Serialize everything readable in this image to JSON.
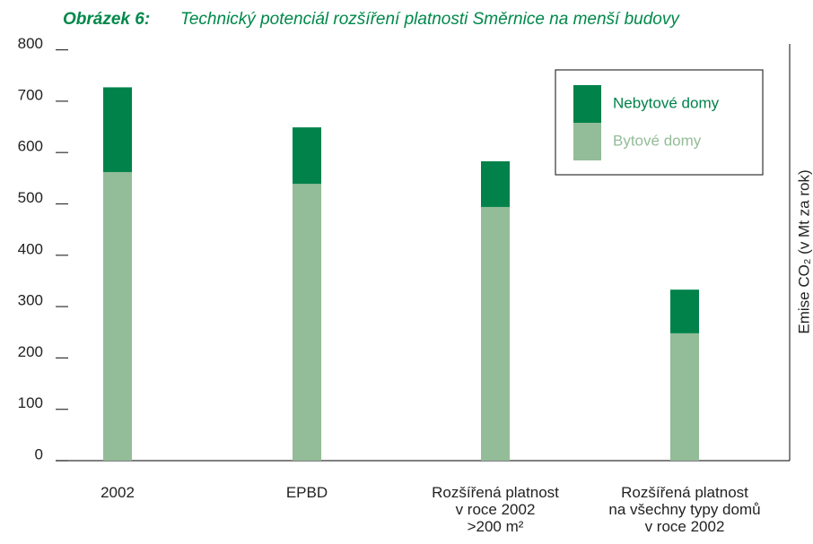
{
  "chart_data": {
    "type": "stacked_bar",
    "title_prefix": "Obrázek 6:",
    "title": "Technický potenciál rozšíření platnosti Směrnice na menší budovy",
    "y_axis_label": "Emise CO₂  (v Mt za rok)",
    "categories": [
      "2002",
      "EPBD",
      "Rozšířená platnost\nv roce 2002\n>200 m²",
      "Rozšířená platnost\nna všechny typy domů\nv roce 2002"
    ],
    "series": [
      {
        "name": "Bytové domy",
        "color": "#93bc98",
        "values": [
          562,
          539,
          494,
          248
        ]
      },
      {
        "name": "Nebytové domy",
        "color": "#00824a",
        "values": [
          165,
          110,
          89,
          85
        ]
      }
    ],
    "ylim": [
      0,
      800
    ],
    "yticks": [
      0,
      100,
      200,
      300,
      400,
      500,
      600,
      700,
      800
    ]
  }
}
